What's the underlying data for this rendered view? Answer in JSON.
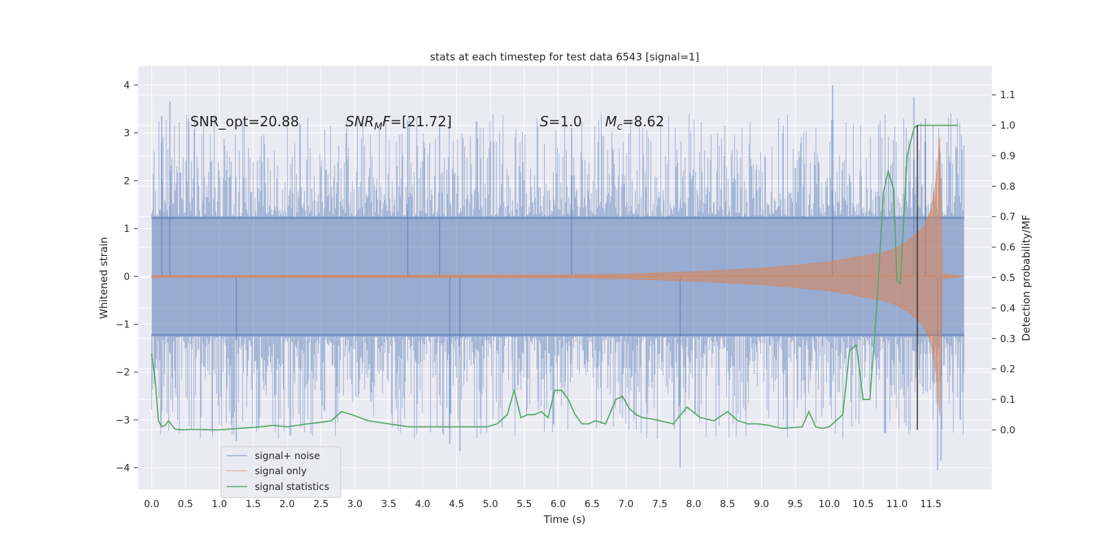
{
  "chart_data": {
    "type": "line",
    "title": "stats at each timestep for test data 6543 [signal=1]",
    "xlabel": "Time (s)",
    "ylabel": "Whitened strain",
    "y2label": "Detection probability/MF",
    "xlim": [
      -0.2,
      12.4
    ],
    "ylim": [
      -4.45,
      4.4
    ],
    "y2lim": [
      -0.195,
      1.195
    ],
    "x_ticks": [
      0.0,
      0.5,
      1.0,
      1.5,
      2.0,
      2.5,
      3.0,
      3.5,
      4.0,
      4.5,
      5.0,
      5.5,
      6.0,
      6.5,
      7.0,
      7.5,
      8.0,
      8.5,
      9.0,
      9.5,
      10.0,
      10.5,
      11.0,
      11.5
    ],
    "x_tick_labels": [
      "0.0",
      "0.5",
      "1.0",
      "1.5",
      "2.0",
      "2.5",
      "3.0",
      "3.5",
      "4.0",
      "4.5",
      "5.0",
      "5.5",
      "6.0",
      "6.5",
      "7.0",
      "7.5",
      "8.0",
      "8.5",
      "9.0",
      "9.5",
      "10.0",
      "10.5",
      "11.0",
      "11.5"
    ],
    "y_ticks": [
      -4,
      -3,
      -2,
      -1,
      0,
      1,
      2,
      3,
      4
    ],
    "y_tick_labels": [
      "−4",
      "−3",
      "−2",
      "−1",
      "0",
      "1",
      "2",
      "3",
      "4"
    ],
    "y2_ticks": [
      0.0,
      0.1,
      0.2,
      0.3,
      0.4,
      0.5,
      0.6,
      0.7,
      0.8,
      0.9,
      1.0,
      1.1
    ],
    "y2_tick_labels": [
      "0.0",
      "0.1",
      "0.2",
      "0.3",
      "0.4",
      "0.5",
      "0.6",
      "0.7",
      "0.8",
      "0.9",
      "1.0",
      "1.1"
    ],
    "grid": true,
    "legend_position": "lower-left",
    "colors": {
      "background": "#eaeaf2",
      "noise": "#4c72b0",
      "signal": "#dd8452",
      "stats": "#55a868",
      "marker": "#333333"
    },
    "annotations": {
      "snr_opt": "SNR_opt=20.88",
      "snr_mf_main": "SNR",
      "snr_mf_sub": "M",
      "snr_mf_tail": "F",
      "snr_mf_value": "=[21.72]",
      "s_symbol": "S",
      "s_value": "=1.0",
      "mc_symbol": "M",
      "mc_sub": "c",
      "mc_value": "=8.62"
    },
    "series": [
      {
        "name": "signal+ noise",
        "axis": "left",
        "x_range": [
          0.0,
          11.99
        ],
        "band_core": [
          -1.25,
          1.25
        ],
        "envelope_upper": 3.4,
        "envelope_lower": -3.4,
        "spikes": [
          {
            "x": 0.15,
            "y": 3.35
          },
          {
            "x": 0.27,
            "y": 3.65
          },
          {
            "x": 1.25,
            "y": -3.45
          },
          {
            "x": 3.78,
            "y": 3.25
          },
          {
            "x": 4.25,
            "y": 3.15
          },
          {
            "x": 4.4,
            "y": -3.5
          },
          {
            "x": 4.55,
            "y": -3.65
          },
          {
            "x": 6.2,
            "y": 3.1
          },
          {
            "x": 7.8,
            "y": -4.0
          },
          {
            "x": 10.05,
            "y": 4.0
          },
          {
            "x": 11.25,
            "y": 3.75
          },
          {
            "x": 11.6,
            "y": -4.05
          },
          {
            "x": 11.65,
            "y": -3.85
          },
          {
            "x": 11.42,
            "y": 3.3
          }
        ]
      },
      {
        "name": "signal only",
        "axis": "left",
        "envelope": [
          [
            0.0,
            0.02
          ],
          [
            6.0,
            0.03
          ],
          [
            7.0,
            0.05
          ],
          [
            8.0,
            0.1
          ],
          [
            9.0,
            0.17
          ],
          [
            10.0,
            0.3
          ],
          [
            10.5,
            0.43
          ],
          [
            10.8,
            0.5
          ],
          [
            11.0,
            0.6
          ],
          [
            11.2,
            0.78
          ],
          [
            11.4,
            1.05
          ],
          [
            11.5,
            1.4
          ],
          [
            11.55,
            1.75
          ],
          [
            11.6,
            2.3
          ],
          [
            11.63,
            2.9
          ],
          [
            11.65,
            1.7
          ],
          [
            11.67,
            0.05
          ],
          [
            11.99,
            0.0
          ]
        ]
      },
      {
        "name": "signal statistics",
        "axis": "right",
        "x": [
          0.0,
          0.05,
          0.1,
          0.15,
          0.2,
          0.25,
          0.3,
          0.35,
          0.45,
          0.6,
          0.9,
          1.0,
          1.3,
          1.6,
          1.8,
          2.0,
          2.3,
          2.5,
          2.65,
          2.8,
          2.95,
          3.2,
          3.5,
          3.8,
          4.1,
          4.35,
          4.7,
          4.95,
          5.1,
          5.25,
          5.35,
          5.45,
          5.55,
          5.65,
          5.75,
          5.85,
          5.95,
          6.05,
          6.15,
          6.25,
          6.35,
          6.45,
          6.55,
          6.7,
          6.85,
          6.95,
          7.05,
          7.15,
          7.25,
          7.4,
          7.7,
          7.9,
          8.1,
          8.3,
          8.5,
          8.65,
          8.8,
          8.95,
          9.1,
          9.3,
          9.6,
          9.7,
          9.8,
          9.9,
          10.0,
          10.2,
          10.3,
          10.4,
          10.5,
          10.6,
          10.7,
          10.8,
          10.87,
          10.95,
          11.0,
          11.05,
          11.15,
          11.25,
          11.3,
          11.35,
          11.4,
          11.45,
          11.5,
          11.6,
          11.8,
          11.9
        ],
        "values": [
          0.25,
          0.17,
          0.03,
          0.01,
          0.015,
          0.03,
          0.015,
          0.002,
          0.0,
          0.002,
          0.0,
          0.0,
          0.005,
          0.01,
          0.015,
          0.01,
          0.02,
          0.025,
          0.03,
          0.06,
          0.05,
          0.03,
          0.02,
          0.01,
          0.01,
          0.01,
          0.01,
          0.01,
          0.02,
          0.05,
          0.13,
          0.04,
          0.05,
          0.05,
          0.06,
          0.04,
          0.13,
          0.13,
          0.1,
          0.05,
          0.02,
          0.02,
          0.03,
          0.02,
          0.1,
          0.11,
          0.07,
          0.05,
          0.04,
          0.035,
          0.02,
          0.075,
          0.04,
          0.03,
          0.06,
          0.03,
          0.02,
          0.02,
          0.015,
          0.005,
          0.01,
          0.06,
          0.01,
          0.005,
          0.01,
          0.05,
          0.26,
          0.28,
          0.1,
          0.1,
          0.4,
          0.78,
          0.85,
          0.79,
          0.49,
          0.48,
          0.9,
          0.99,
          1.0,
          1.0,
          1.0,
          1.0,
          1.0,
          1.0,
          1.0,
          1.0
        ]
      }
    ],
    "vertical_marker": {
      "x": 11.3,
      "y2_from": 0.0,
      "y2_to": 1.0
    },
    "legend": [
      "signal+ noise",
      "signal only",
      "signal statistics"
    ]
  }
}
